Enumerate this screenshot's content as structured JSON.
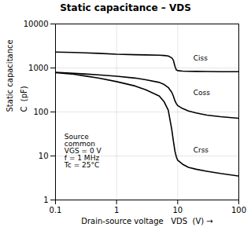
{
  "chart_data": {
    "type": "line",
    "title": "Static capacitance – VDS",
    "xlabel": "Drain-source voltage   VDS  (V)",
    "ylabel": "C  (pF)",
    "ylabel2": "Static capacitance",
    "log": true,
    "grid": true,
    "xlim": [
      0.1,
      100
    ],
    "ylim": [
      1,
      10000
    ],
    "xticks": [
      0.1,
      1,
      10,
      100
    ],
    "yticks": [
      1,
      10,
      100,
      1000,
      10000
    ],
    "x": [
      0.1,
      0.2,
      0.3,
      0.5,
      1.0,
      2.0,
      3.0,
      5.0,
      6.0,
      7.0,
      8.0,
      8.5,
      9.0,
      9.5,
      10.0,
      12.0,
      15.0,
      20.0,
      30.0,
      50.0,
      100.0
    ],
    "series": [
      {
        "name": "Ciss",
        "color": "#000000",
        "values": [
          2300,
          2250,
          2200,
          2150,
          2050,
          2000,
          1980,
          1950,
          1920,
          1870,
          1700,
          1500,
          1100,
          900,
          870,
          850,
          840,
          835,
          830,
          825,
          820
        ]
      },
      {
        "name": "Coss",
        "color": "#000000",
        "values": [
          800,
          760,
          730,
          700,
          650,
          590,
          540,
          470,
          420,
          360,
          280,
          230,
          180,
          155,
          140,
          120,
          105,
          95,
          85,
          78,
          72
        ]
      },
      {
        "name": "Crss",
        "color": "#000000",
        "values": [
          780,
          720,
          660,
          590,
          490,
          390,
          320,
          230,
          170,
          110,
          40,
          22,
          13,
          9.5,
          8.0,
          6.5,
          5.5,
          5.0,
          4.5,
          4.0,
          3.5
        ]
      }
    ],
    "annotations": [
      {
        "text": "Ciss",
        "x": 18,
        "y": 1500
      },
      {
        "text": "Coss",
        "x": 18,
        "y": 240
      },
      {
        "text": "Crss",
        "x": 18,
        "y": 12
      },
      {
        "text": "Source\ncommon\nVGS = 0 V\nf = 1 MHz\nTc = 25°C",
        "x": 0.14,
        "y": 5.5
      }
    ]
  }
}
